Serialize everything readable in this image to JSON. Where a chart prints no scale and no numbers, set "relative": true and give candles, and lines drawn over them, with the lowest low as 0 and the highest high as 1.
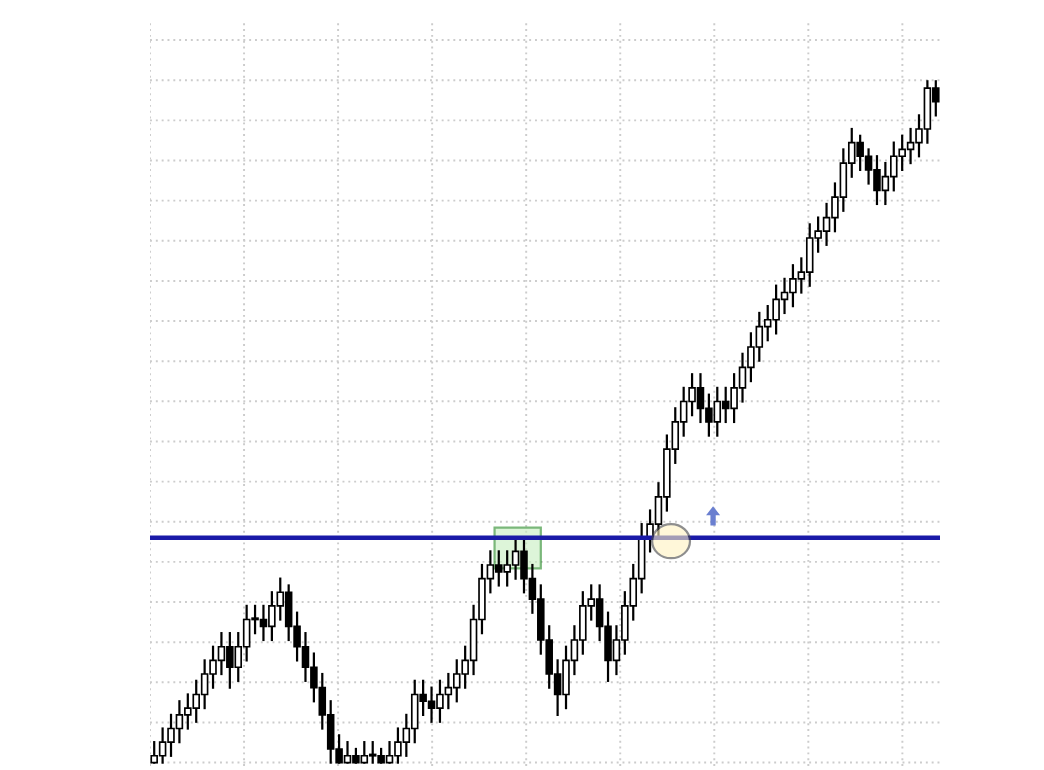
{
  "chart_data": {
    "type": "candlestick",
    "relative": true,
    "grid": true,
    "categories": [
      null,
      null,
      null,
      null,
      null,
      null,
      null,
      null,
      null,
      null,
      null,
      null,
      null,
      null,
      null,
      null,
      null,
      null,
      null,
      null,
      null,
      null,
      null,
      null,
      null,
      null,
      null,
      null,
      null,
      null,
      null,
      null,
      null,
      null,
      null,
      null,
      null,
      null,
      null,
      null,
      null,
      null,
      null,
      null,
      null,
      null,
      null,
      null,
      null,
      null,
      null,
      null,
      null,
      null,
      null,
      null,
      null,
      null,
      null,
      null,
      null,
      null,
      null,
      null,
      null,
      null,
      null,
      null,
      null,
      null,
      null,
      null,
      null,
      null,
      null,
      null,
      null,
      null,
      null,
      null,
      null,
      null,
      null,
      null,
      null,
      null,
      null,
      null,
      null,
      null,
      null,
      null,
      null,
      null
    ],
    "ohlc": [
      [
        0.0,
        0.03,
        0.0,
        0.01
      ],
      [
        0.01,
        0.05,
        0.0,
        0.03
      ],
      [
        0.03,
        0.07,
        0.01,
        0.05
      ],
      [
        0.05,
        0.09,
        0.03,
        0.07
      ],
      [
        0.07,
        0.1,
        0.05,
        0.08
      ],
      [
        0.08,
        0.12,
        0.06,
        0.1
      ],
      [
        0.1,
        0.15,
        0.08,
        0.13
      ],
      [
        0.13,
        0.17,
        0.11,
        0.15
      ],
      [
        0.15,
        0.19,
        0.13,
        0.17
      ],
      [
        0.17,
        0.19,
        0.11,
        0.14
      ],
      [
        0.14,
        0.19,
        0.12,
        0.17
      ],
      [
        0.17,
        0.23,
        0.15,
        0.21
      ],
      [
        0.21,
        0.23,
        0.19,
        0.21
      ],
      [
        0.21,
        0.23,
        0.18,
        0.2
      ],
      [
        0.2,
        0.25,
        0.18,
        0.23
      ],
      [
        0.23,
        0.27,
        0.21,
        0.25
      ],
      [
        0.25,
        0.26,
        0.18,
        0.2
      ],
      [
        0.2,
        0.22,
        0.15,
        0.17
      ],
      [
        0.17,
        0.19,
        0.12,
        0.14
      ],
      [
        0.14,
        0.16,
        0.09,
        0.11
      ],
      [
        0.11,
        0.13,
        0.05,
        0.07
      ],
      [
        0.07,
        0.09,
        0.0,
        0.02
      ],
      [
        0.02,
        0.04,
        0.0,
        0.0
      ],
      [
        0.0,
        0.03,
        0.0,
        0.01
      ],
      [
        0.01,
        0.02,
        0.0,
        0.0
      ],
      [
        0.0,
        0.03,
        0.0,
        0.01
      ],
      [
        0.01,
        0.03,
        0.0,
        0.01
      ],
      [
        0.01,
        0.02,
        0.0,
        0.0
      ],
      [
        0.0,
        0.03,
        0.0,
        0.01
      ],
      [
        0.01,
        0.05,
        0.0,
        0.03
      ],
      [
        0.03,
        0.07,
        0.01,
        0.05
      ],
      [
        0.05,
        0.12,
        0.03,
        0.1
      ],
      [
        0.1,
        0.12,
        0.07,
        0.09
      ],
      [
        0.09,
        0.11,
        0.06,
        0.08
      ],
      [
        0.08,
        0.12,
        0.06,
        0.1
      ],
      [
        0.1,
        0.13,
        0.08,
        0.11
      ],
      [
        0.11,
        0.15,
        0.09,
        0.13
      ],
      [
        0.13,
        0.17,
        0.11,
        0.15
      ],
      [
        0.15,
        0.23,
        0.13,
        0.21
      ],
      [
        0.21,
        0.29,
        0.19,
        0.27
      ],
      [
        0.27,
        0.31,
        0.25,
        0.29
      ],
      [
        0.29,
        0.31,
        0.26,
        0.28
      ],
      [
        0.28,
        0.31,
        0.26,
        0.29
      ],
      [
        0.29,
        0.33,
        0.27,
        0.31
      ],
      [
        0.31,
        0.33,
        0.25,
        0.27
      ],
      [
        0.27,
        0.29,
        0.22,
        0.24
      ],
      [
        0.24,
        0.26,
        0.16,
        0.18
      ],
      [
        0.18,
        0.2,
        0.11,
        0.13
      ],
      [
        0.13,
        0.15,
        0.07,
        0.1
      ],
      [
        0.1,
        0.17,
        0.08,
        0.15
      ],
      [
        0.15,
        0.2,
        0.13,
        0.18
      ],
      [
        0.18,
        0.25,
        0.16,
        0.23
      ],
      [
        0.23,
        0.26,
        0.21,
        0.24
      ],
      [
        0.24,
        0.26,
        0.18,
        0.2
      ],
      [
        0.2,
        0.22,
        0.12,
        0.15
      ],
      [
        0.15,
        0.2,
        0.13,
        0.18
      ],
      [
        0.18,
        0.25,
        0.16,
        0.23
      ],
      [
        0.23,
        0.29,
        0.21,
        0.27
      ],
      [
        0.27,
        0.35,
        0.25,
        0.33
      ],
      [
        0.33,
        0.37,
        0.31,
        0.35
      ],
      [
        0.35,
        0.41,
        0.33,
        0.39
      ],
      [
        0.39,
        0.48,
        0.37,
        0.46
      ],
      [
        0.46,
        0.52,
        0.44,
        0.5
      ],
      [
        0.5,
        0.55,
        0.48,
        0.53
      ],
      [
        0.53,
        0.57,
        0.51,
        0.55
      ],
      [
        0.55,
        0.57,
        0.5,
        0.52
      ],
      [
        0.52,
        0.54,
        0.48,
        0.5
      ],
      [
        0.5,
        0.55,
        0.48,
        0.53
      ],
      [
        0.53,
        0.55,
        0.5,
        0.52
      ],
      [
        0.52,
        0.57,
        0.5,
        0.55
      ],
      [
        0.55,
        0.6,
        0.53,
        0.58
      ],
      [
        0.58,
        0.63,
        0.56,
        0.61
      ],
      [
        0.61,
        0.66,
        0.59,
        0.64
      ],
      [
        0.64,
        0.67,
        0.62,
        0.65
      ],
      [
        0.65,
        0.7,
        0.63,
        0.68
      ],
      [
        0.68,
        0.71,
        0.66,
        0.69
      ],
      [
        0.69,
        0.73,
        0.67,
        0.71
      ],
      [
        0.71,
        0.74,
        0.69,
        0.72
      ],
      [
        0.72,
        0.79,
        0.7,
        0.77
      ],
      [
        0.77,
        0.8,
        0.75,
        0.78
      ],
      [
        0.78,
        0.82,
        0.76,
        0.8
      ],
      [
        0.8,
        0.85,
        0.78,
        0.83
      ],
      [
        0.83,
        0.9,
        0.81,
        0.88
      ],
      [
        0.88,
        0.93,
        0.86,
        0.91
      ],
      [
        0.91,
        0.92,
        0.87,
        0.89
      ],
      [
        0.89,
        0.9,
        0.85,
        0.87
      ],
      [
        0.87,
        0.89,
        0.82,
        0.84
      ],
      [
        0.84,
        0.88,
        0.82,
        0.86
      ],
      [
        0.86,
        0.91,
        0.84,
        0.89
      ],
      [
        0.89,
        0.92,
        0.87,
        0.9
      ],
      [
        0.9,
        0.93,
        0.88,
        0.91
      ],
      [
        0.91,
        0.95,
        0.89,
        0.93
      ],
      [
        0.93,
        1.0,
        0.91,
        0.99
      ],
      [
        0.99,
        1.0,
        0.95,
        0.97
      ]
    ],
    "ref_lines": [
      {
        "axis": "y",
        "value": 0.33,
        "color": "#1a1aa8",
        "line_style": "solid"
      }
    ]
  }
}
